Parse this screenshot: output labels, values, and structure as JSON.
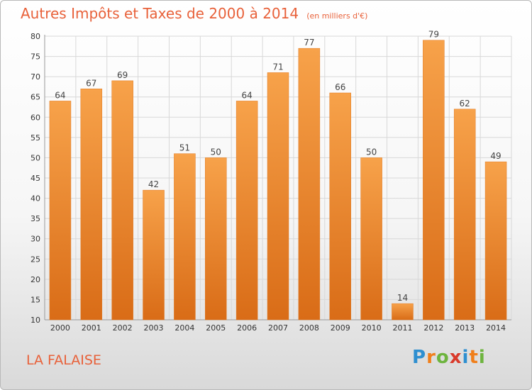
{
  "title": "Autres Impôts et Taxes de 2000 à 2014",
  "unit_note": "(en milliers d'€)",
  "location": "LA FALAISE",
  "logo": {
    "letters": [
      "P",
      "r",
      "o",
      "x",
      "i",
      "t",
      "i"
    ],
    "colors": [
      "#2e8fd0",
      "#f07f1b",
      "#6db43e",
      "#d93a2b",
      "#2e8fd0",
      "#f07f1b",
      "#6db43e"
    ]
  },
  "colors": {
    "bar": "#f08a2c",
    "bar_light": "#f7a24a",
    "bar_dark": "#d96c17",
    "title": "#e8613a",
    "grid": "#d8d8d8"
  },
  "chart_data": {
    "type": "bar",
    "categories": [
      "2000",
      "2001",
      "2002",
      "2003",
      "2004",
      "2005",
      "2006",
      "2007",
      "2008",
      "2009",
      "2010",
      "2011",
      "2012",
      "2013",
      "2014"
    ],
    "values": [
      64,
      67,
      69,
      42,
      51,
      50,
      64,
      71,
      77,
      66,
      50,
      14,
      79,
      62,
      49
    ],
    "ylim": [
      10,
      80
    ],
    "yticks": [
      10,
      15,
      20,
      25,
      30,
      35,
      40,
      45,
      50,
      55,
      60,
      65,
      70,
      75,
      80
    ],
    "grid": true,
    "title": "Autres Impôts et Taxes de 2000 à 2014",
    "xlabel": "",
    "ylabel": ""
  }
}
